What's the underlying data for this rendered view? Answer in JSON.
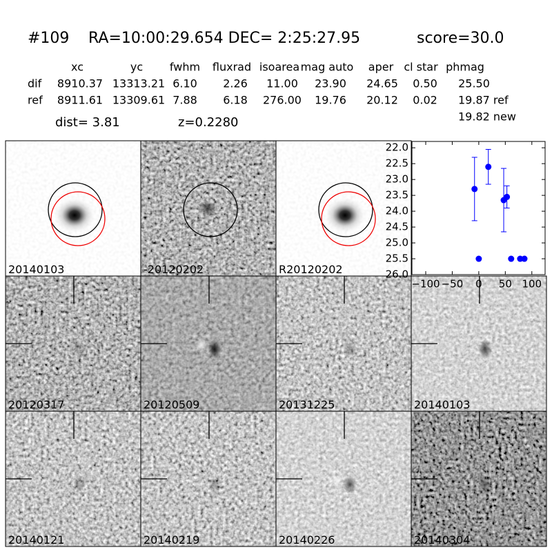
{
  "header": {
    "id": "#109",
    "coords": "RA=10:00:29.654 DEC= 2:25:27.95",
    "score": "score=30.0"
  },
  "table": {
    "columns": [
      "xc",
      "yc",
      "fwhm",
      "fluxrad",
      "isoarea",
      "mag auto",
      "aper",
      "cl star",
      "phmag"
    ],
    "rows": [
      {
        "label": "dif",
        "cells": [
          "8910.37",
          "13313.21",
          "6.10",
          "2.26",
          "11.00",
          "23.90",
          "24.65",
          "0.50",
          "25.50"
        ]
      },
      {
        "label": "ref",
        "cells": [
          "8911.61",
          "13309.61",
          "7.88",
          "6.18",
          "276.00",
          "19.76",
          "20.12",
          "0.02",
          "19.87 ref"
        ]
      }
    ],
    "extra": "19.82 new"
  },
  "dist": "dist=  3.81",
  "redshift": "z=0.2280",
  "panels": [
    "20140103",
    "-20120202",
    "R20120202",
    "20120317",
    "20120509",
    "20131225",
    "20140103",
    "20140121",
    "20140219",
    "20140226",
    "20140304"
  ],
  "chart_data": {
    "type": "scatter",
    "series": [
      {
        "color": "#0000ff",
        "x": [
          -8,
          18,
          47,
          53
        ],
        "values": [
          23.3,
          22.6,
          23.65,
          23.55
        ],
        "errors": [
          1.0,
          0.55,
          1.0,
          0.35
        ]
      },
      {
        "color": "#0000ff",
        "x": [
          0,
          61,
          78,
          86
        ],
        "values": [
          25.5,
          25.5,
          25.5,
          25.5
        ]
      }
    ],
    "xlim": [
      -126,
      125
    ],
    "ylim": [
      26.0,
      21.8
    ],
    "xticks": [
      {
        "value": -100,
        "label": "−100"
      },
      {
        "value": -50,
        "label": "−50"
      },
      0,
      50,
      100
    ],
    "yticks": [
      {
        "value": 22.0,
        "label": "22.0"
      },
      {
        "value": 22.5,
        "label": "22.5"
      },
      {
        "value": 23.0,
        "label": "23.0"
      },
      {
        "value": 23.5,
        "label": "23.5"
      },
      {
        "value": 24.0,
        "label": "24.0"
      },
      {
        "value": 24.5,
        "label": "24.5"
      },
      {
        "value": 25.0,
        "label": "25.0"
      },
      {
        "value": 25.5,
        "label": "25.5"
      },
      {
        "value": 26.0,
        "label": "26.0"
      }
    ]
  }
}
